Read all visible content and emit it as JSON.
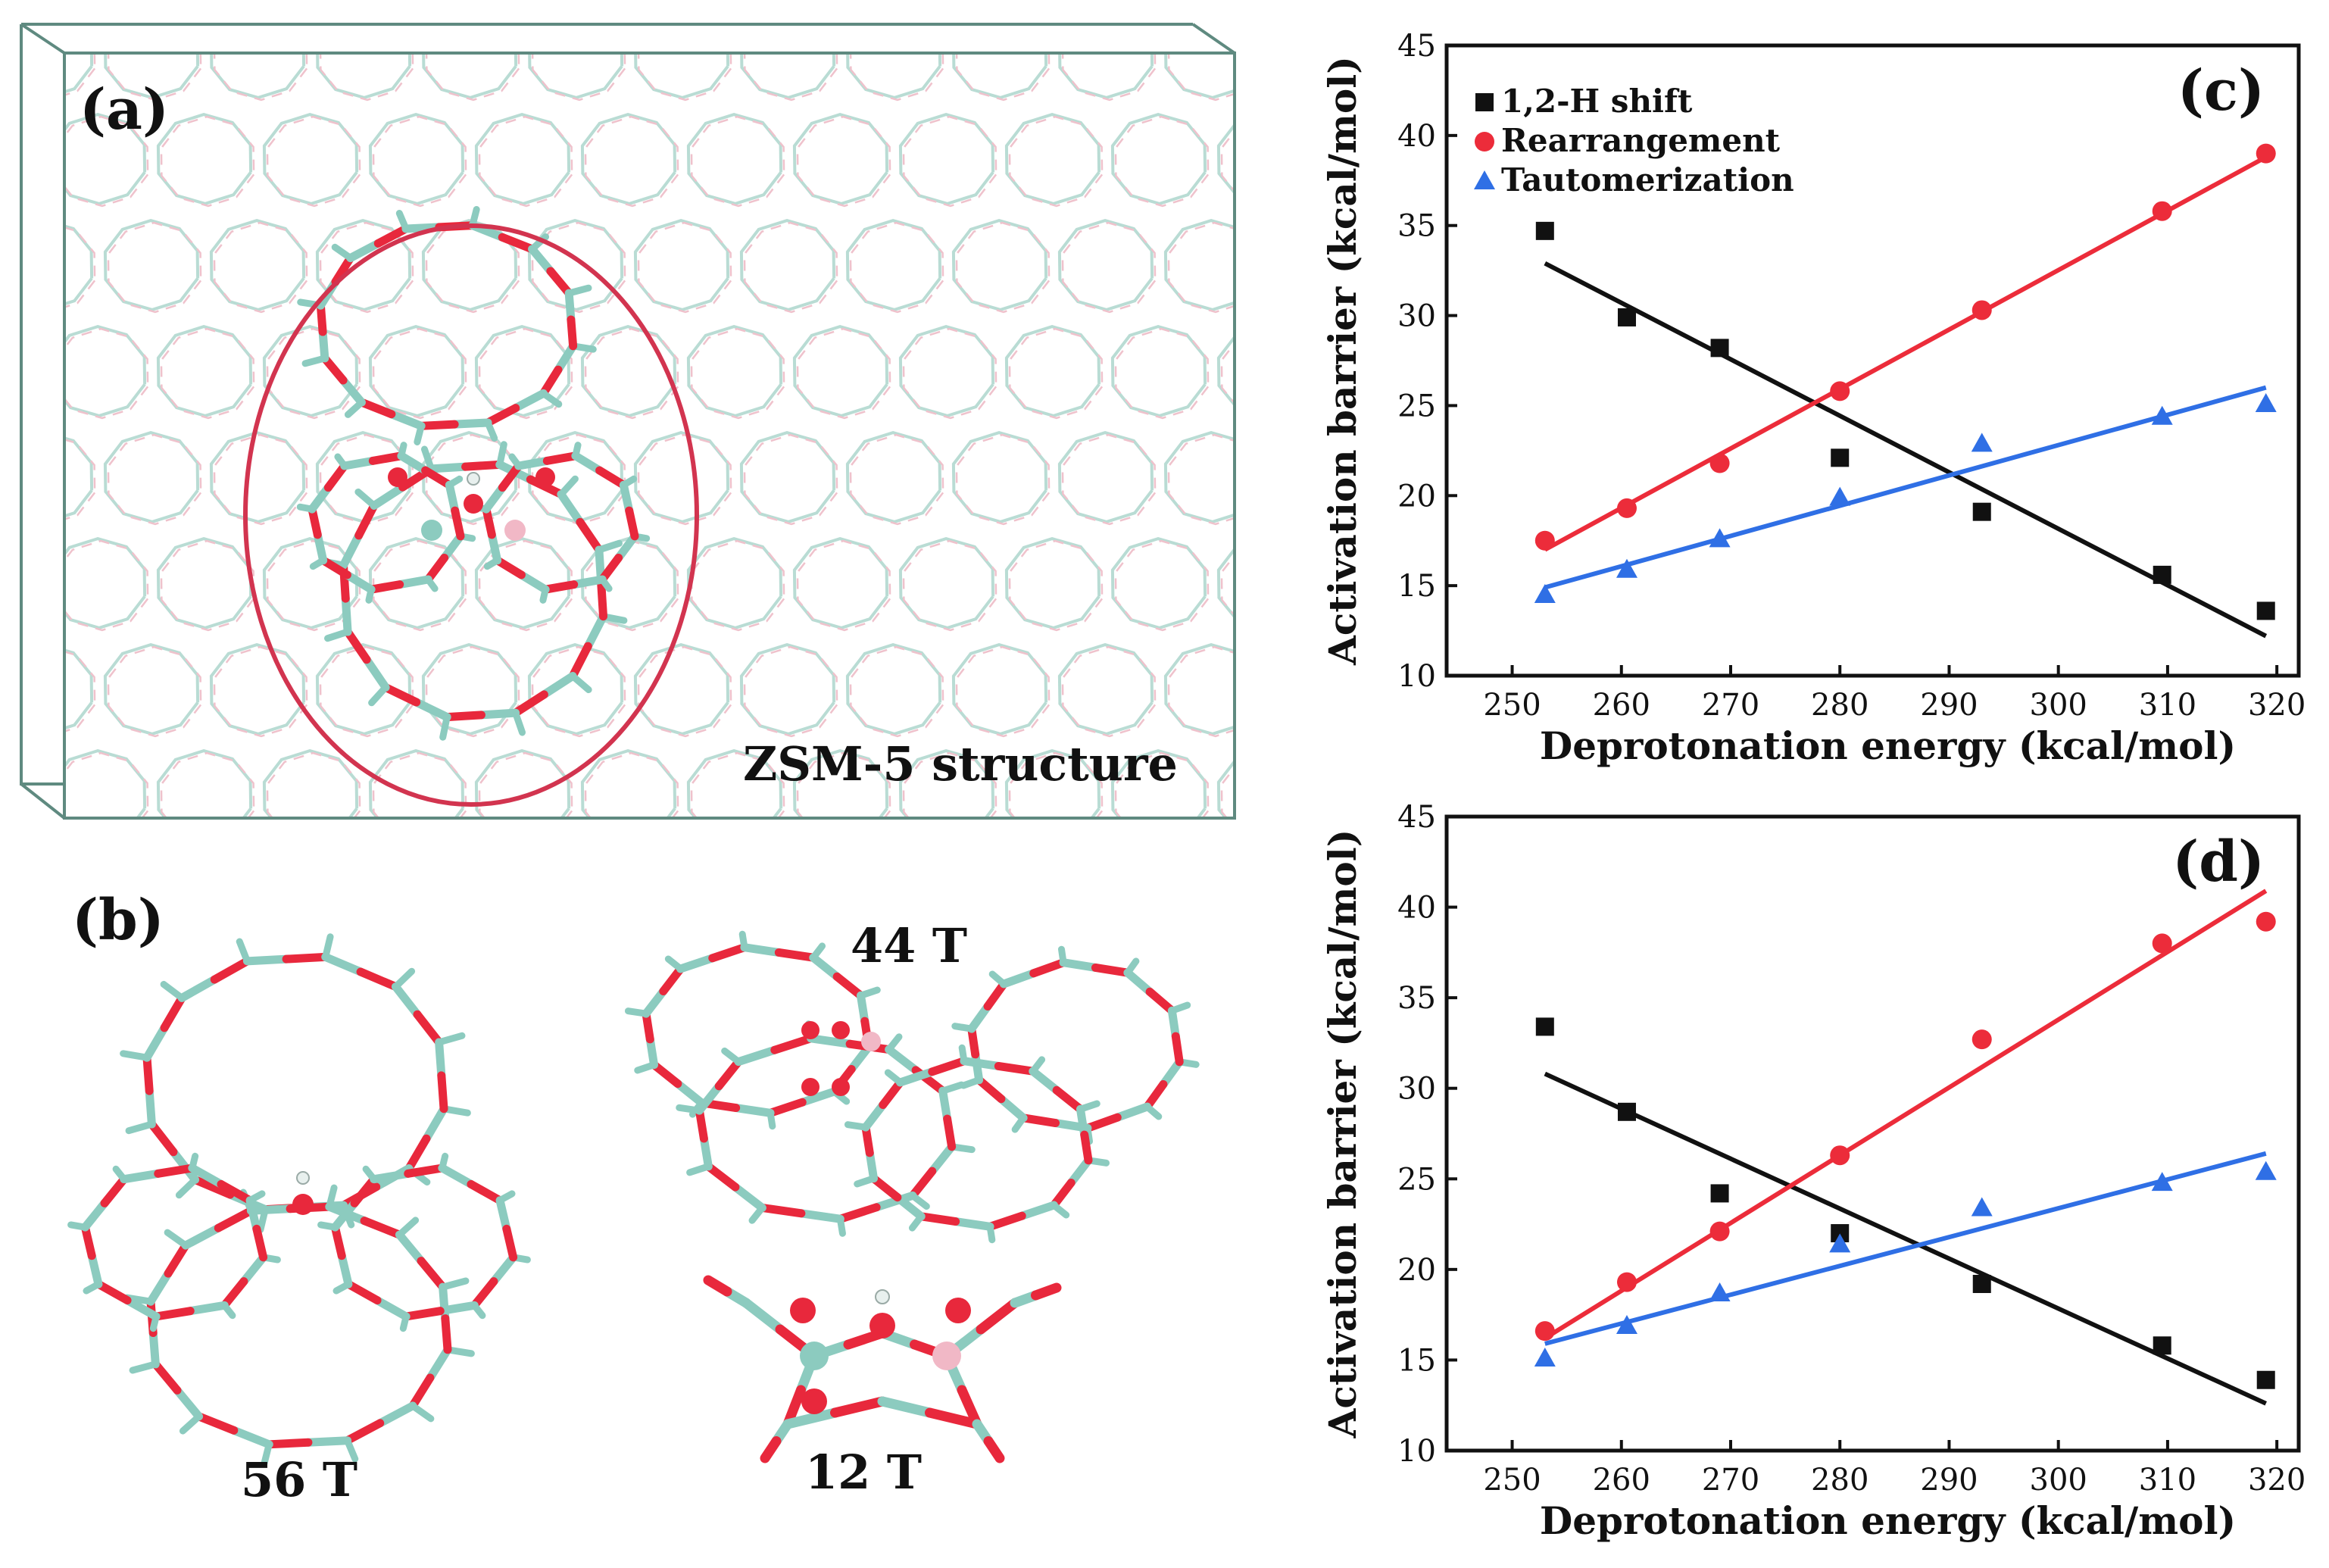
{
  "colors": {
    "oxygen": "#e8283c",
    "silicon": "#8ccbbf",
    "aluminium": "#f1b8c6",
    "lattice_light": "#b9dcd4",
    "lattice_pink": "#efc2cc",
    "box": "#5f8a80",
    "ellipse": "#d2344f",
    "series_1": "#111111",
    "series_2": "#ec2c3a",
    "series_3": "#2f6fe5"
  },
  "panel_a": {
    "label": "(a)",
    "caption": "ZSM-5 structure"
  },
  "panel_b": {
    "label": "(b)",
    "clusters": [
      "56 T",
      "44 T",
      "12 T"
    ]
  },
  "chart_data": [
    {
      "type": "scatter",
      "panel": "(c)",
      "xlabel": "Deprotonation energy (kcal/mol)",
      "ylabel": "Activation barrier (kcal/mol)",
      "xlim": [
        244,
        322
      ],
      "ylim": [
        10,
        45
      ],
      "xticks": [
        250,
        260,
        270,
        280,
        290,
        300,
        310,
        320
      ],
      "yticks": [
        10,
        15,
        20,
        25,
        30,
        35,
        40,
        45
      ],
      "legend_position": "top-left",
      "series": [
        {
          "name": "1,2-H shift",
          "marker": "square",
          "color": "#111111",
          "x": [
            253,
            260.5,
            269,
            280,
            293,
            309.5,
            319
          ],
          "y": [
            34.7,
            29.9,
            28.2,
            22.1,
            19.1,
            15.6,
            13.6
          ],
          "fit": [
            [
              253,
              32.9
            ],
            [
              319,
              12.2
            ]
          ]
        },
        {
          "name": "Rearrangement",
          "marker": "circle",
          "color": "#ec2c3a",
          "x": [
            253,
            260.5,
            269,
            280,
            293,
            309.5,
            319
          ],
          "y": [
            17.5,
            19.3,
            21.8,
            25.8,
            30.3,
            35.8,
            39.0
          ],
          "fit": [
            [
              253,
              17.0
            ],
            [
              319,
              38.8
            ]
          ]
        },
        {
          "name": "Tautomerization",
          "marker": "triangle",
          "color": "#2f6fe5",
          "x": [
            253,
            260.5,
            269,
            280,
            293,
            309.5,
            319
          ],
          "y": [
            14.5,
            15.9,
            17.6,
            19.9,
            22.9,
            24.4,
            25.1
          ],
          "fit": [
            [
              253,
              14.9
            ],
            [
              319,
              26.0
            ]
          ]
        }
      ]
    },
    {
      "type": "scatter",
      "panel": "(d)",
      "xlabel": "Deprotonation energy (kcal/mol)",
      "ylabel": "Activation barrier (kcal/mol)",
      "xlim": [
        244,
        322
      ],
      "ylim": [
        10,
        45
      ],
      "xticks": [
        250,
        260,
        270,
        280,
        290,
        300,
        310,
        320
      ],
      "yticks": [
        10,
        15,
        20,
        25,
        30,
        35,
        40,
        45
      ],
      "series": [
        {
          "name": "1,2-H shift",
          "marker": "square",
          "color": "#111111",
          "x": [
            253,
            260.5,
            269,
            280,
            293,
            309.5,
            319
          ],
          "y": [
            33.4,
            28.7,
            24.2,
            22.0,
            19.2,
            15.8,
            13.9
          ],
          "fit": [
            [
              253,
              30.8
            ],
            [
              319,
              12.6
            ]
          ]
        },
        {
          "name": "Rearrangement",
          "marker": "circle",
          "color": "#ec2c3a",
          "x": [
            253,
            260.5,
            269,
            280,
            293,
            309.5,
            319
          ],
          "y": [
            16.6,
            19.3,
            22.1,
            26.3,
            32.7,
            38.0,
            39.2
          ],
          "fit": [
            [
              253,
              16.2
            ],
            [
              319,
              40.9
            ]
          ]
        },
        {
          "name": "Tautomerization",
          "marker": "triangle",
          "color": "#2f6fe5",
          "x": [
            253,
            260.5,
            269,
            280,
            293,
            309.5,
            319
          ],
          "y": [
            15.1,
            16.9,
            18.7,
            21.4,
            23.4,
            24.8,
            25.4
          ],
          "fit": [
            [
              253,
              15.9
            ],
            [
              319,
              26.4
            ]
          ]
        }
      ]
    }
  ]
}
